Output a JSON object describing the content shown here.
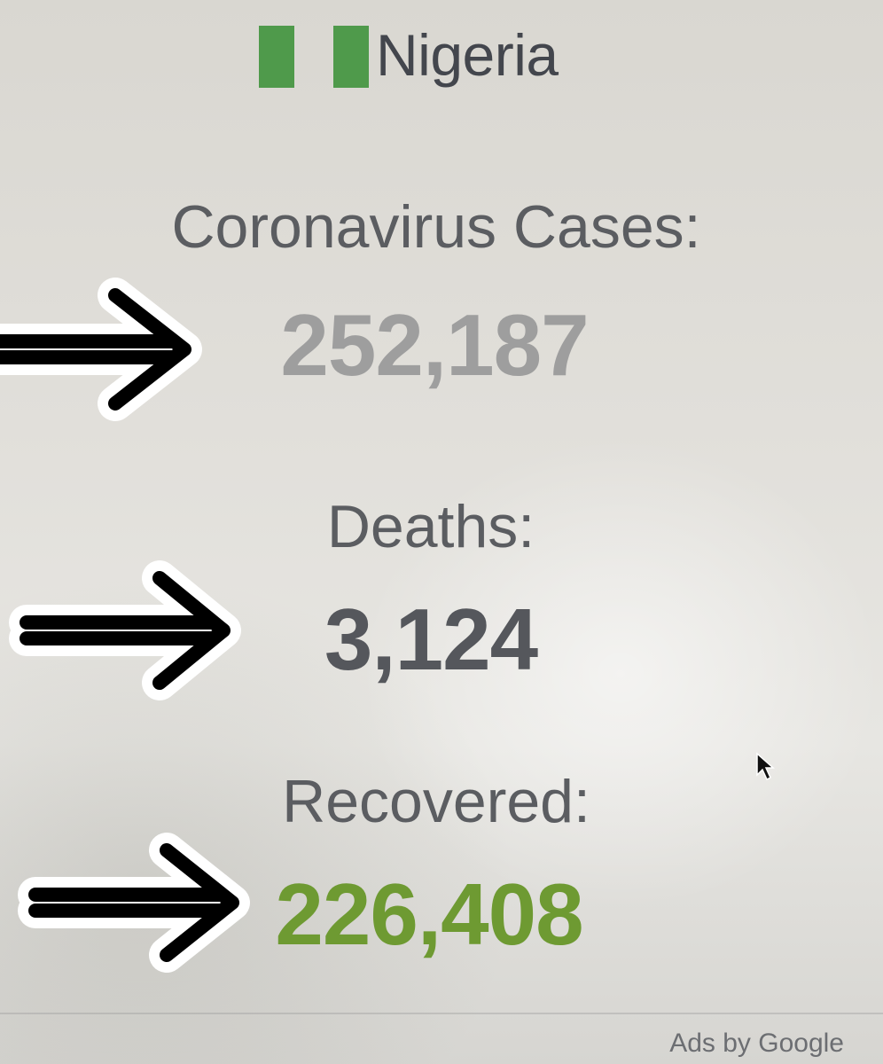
{
  "country": {
    "name": "Nigeria",
    "flag_icon": "nigeria-flag-icon",
    "flag_colors": {
      "green": "#4f9a4b",
      "white": "#ffffff"
    }
  },
  "stats": {
    "cases": {
      "label": "Coronavirus Cases:",
      "value": "252,187",
      "color": "#9e9e9e"
    },
    "deaths": {
      "label": "Deaths:",
      "value": "3,124",
      "color": "#55575c"
    },
    "recovered": {
      "label": "Recovered:",
      "value": "226,408",
      "color": "#6e9a32"
    }
  },
  "annotations": {
    "arrow_icon": "right-arrow-icon",
    "arrow_color": "#000000",
    "arrow_outline": "#ffffff"
  },
  "cursor_icon": "mouse-pointer-icon",
  "footer": {
    "ads_label": "Ads by Google"
  }
}
